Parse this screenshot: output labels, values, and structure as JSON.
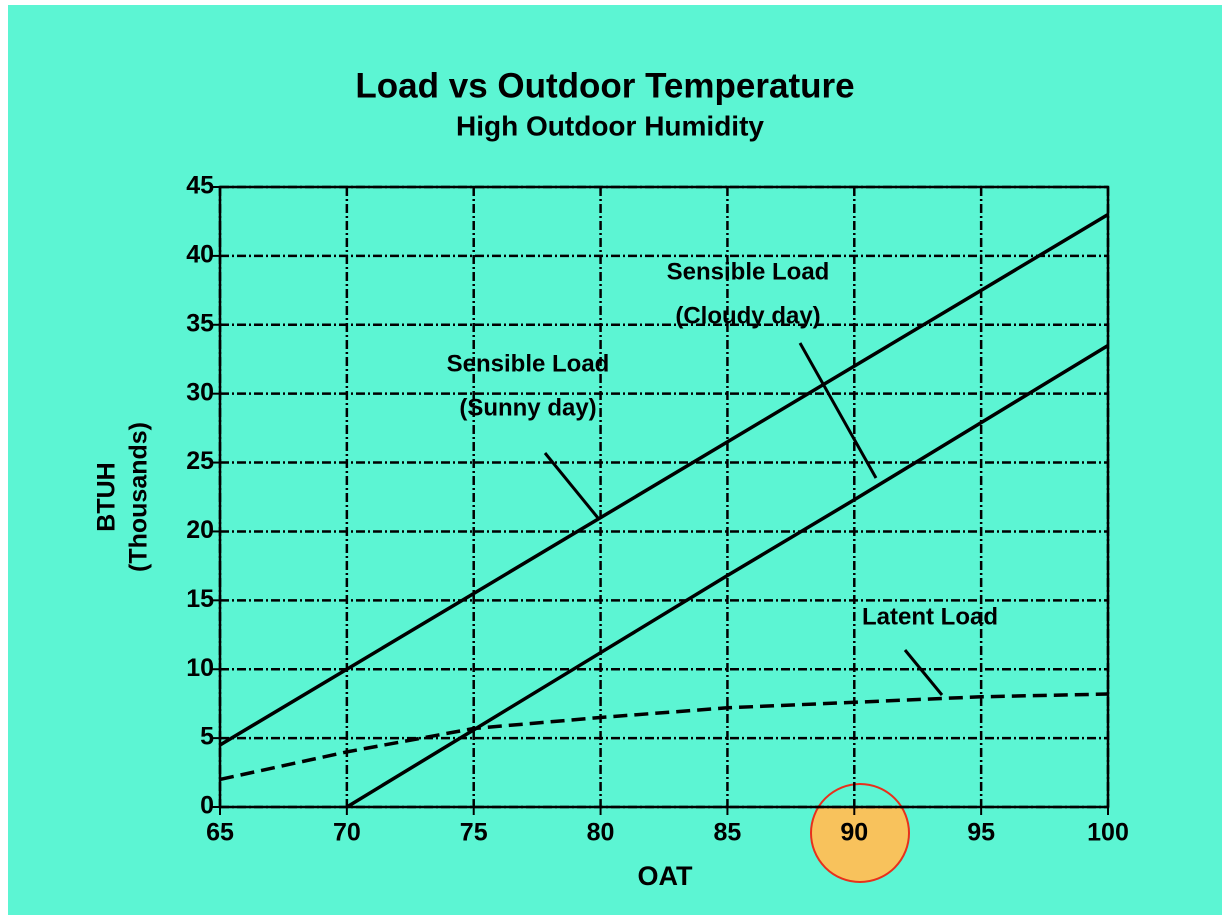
{
  "chart_data": {
    "type": "line",
    "title": "Load vs Outdoor Temperature",
    "subtitle": "High Outdoor Humidity",
    "xlabel": "OAT",
    "ylabel": [
      "BTUH",
      "(Thousands)"
    ],
    "x": [
      65,
      70,
      75,
      80,
      85,
      90,
      95,
      100
    ],
    "series": [
      {
        "name": "Sensible Load (Sunny day)",
        "color": "#000000",
        "style": "solid",
        "values": [
          4.5,
          10,
          15.5,
          21,
          26.5,
          32,
          37.5,
          43
        ]
      },
      {
        "name": "Sensible Load (Cloudy day)",
        "color": "#000000",
        "style": "solid",
        "values": [
          null,
          0,
          5.6,
          11.2,
          16.8,
          22.3,
          27.9,
          33.5
        ]
      },
      {
        "name": "Latent Load",
        "color": "#000000",
        "style": "dashed",
        "values": [
          2,
          4,
          5.7,
          6.5,
          7.2,
          7.6,
          8,
          8.2
        ]
      }
    ],
    "annotations": [
      {
        "lines": [
          "Sensible Load",
          "(Sunny day)"
        ]
      },
      {
        "lines": [
          "Sensible Load",
          "(Cloudy day)"
        ]
      },
      {
        "lines": [
          "Latent Load"
        ]
      }
    ],
    "xlim": [
      65,
      100
    ],
    "xticks": [
      65,
      70,
      75,
      80,
      85,
      90,
      95,
      100
    ],
    "ylim": [
      0,
      45
    ],
    "yticks": [
      0,
      5,
      10,
      15,
      20,
      25,
      30,
      35,
      40,
      45
    ],
    "grid": true
  }
}
